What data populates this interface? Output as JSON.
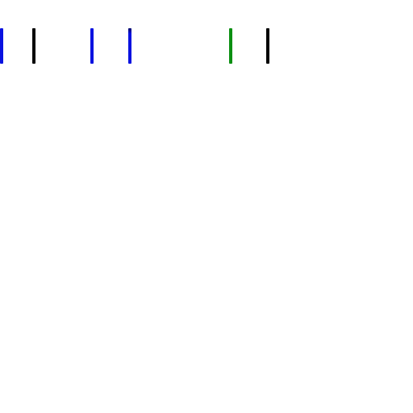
{
  "marks": [
    {
      "color": "#0a12e0"
    },
    {
      "color": "#050505"
    },
    {
      "color": "#0a12e0"
    },
    {
      "color": "#0a12e0"
    },
    {
      "color": "#0b8f12"
    },
    {
      "color": "#050505"
    }
  ]
}
